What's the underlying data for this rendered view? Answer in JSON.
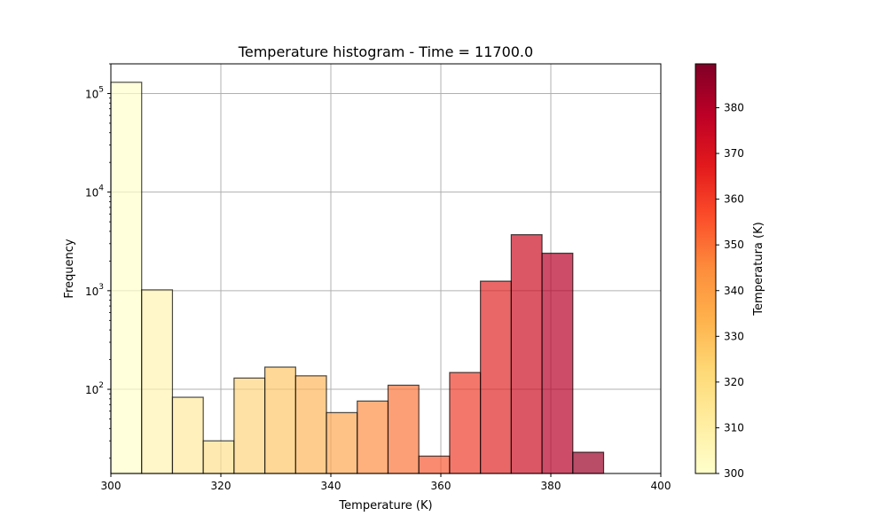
{
  "chart_data": {
    "type": "bar",
    "title": "Temperature histogram - Time = 11700.0",
    "xlabel": "Temperature (K)",
    "ylabel": "Frequency",
    "y_scale": "log",
    "xlim": [
      300,
      400
    ],
    "ylim": [
      14,
      200000
    ],
    "grid": true,
    "x_ticks": [
      "300",
      "320",
      "340",
      "360",
      "380",
      "400"
    ],
    "y_ticks": [
      {
        "value": 100,
        "base": "10",
        "exp": "2"
      },
      {
        "value": 1000,
        "base": "10",
        "exp": "3"
      },
      {
        "value": 10000,
        "base": "10",
        "exp": "4"
      },
      {
        "value": 100000,
        "base": "10",
        "exp": "5"
      }
    ],
    "bins": [
      {
        "x0": 300.0,
        "x1": 305.6,
        "count": 130000,
        "color": "#ffffcc"
      },
      {
        "x0": 305.6,
        "x1": 311.2,
        "count": 1020,
        "color": "#fff3b2"
      },
      {
        "x0": 311.2,
        "x1": 316.8,
        "count": 83,
        "color": "#ffeaa0"
      },
      {
        "x0": 316.8,
        "x1": 322.4,
        "count": 30,
        "color": "#fee190"
      },
      {
        "x0": 322.4,
        "x1": 328.0,
        "count": 130,
        "color": "#fed47d"
      },
      {
        "x0": 328.0,
        "x1": 333.6,
        "count": 168,
        "color": "#fec869"
      },
      {
        "x0": 333.6,
        "x1": 339.2,
        "count": 137,
        "color": "#feb85d"
      },
      {
        "x0": 339.2,
        "x1": 344.8,
        "count": 58,
        "color": "#fda652"
      },
      {
        "x0": 344.8,
        "x1": 350.4,
        "count": 76,
        "color": "#fd8e46"
      },
      {
        "x0": 350.4,
        "x1": 356.0,
        "count": 110,
        "color": "#fc763c"
      },
      {
        "x0": 356.0,
        "x1": 361.6,
        "count": 21,
        "color": "#f85a34"
      },
      {
        "x0": 361.6,
        "x1": 367.2,
        "count": 148,
        "color": "#ee3e2c"
      },
      {
        "x0": 367.2,
        "x1": 372.8,
        "count": 1250,
        "color": "#e02626"
      },
      {
        "x0": 372.8,
        "x1": 378.4,
        "count": 3700,
        "color": "#cc1024"
      },
      {
        "x0": 378.4,
        "x1": 384.0,
        "count": 2400,
        "color": "#b80026"
      },
      {
        "x0": 384.0,
        "x1": 389.6,
        "count": 23,
        "color": "#9b0026"
      }
    ],
    "bar_opacity": 0.7,
    "colorbar": {
      "label": "Temperatura (K)",
      "range": [
        300,
        389.6
      ],
      "ticks": [
        "300",
        "310",
        "320",
        "330",
        "340",
        "350",
        "360",
        "370",
        "380"
      ],
      "colormap": "YlOrRd",
      "colors": [
        "#ffffcc",
        "#ffeda0",
        "#fed976",
        "#feb24c",
        "#fd8d3c",
        "#fc4e2a",
        "#e31a1c",
        "#bd0026",
        "#800026"
      ]
    }
  }
}
